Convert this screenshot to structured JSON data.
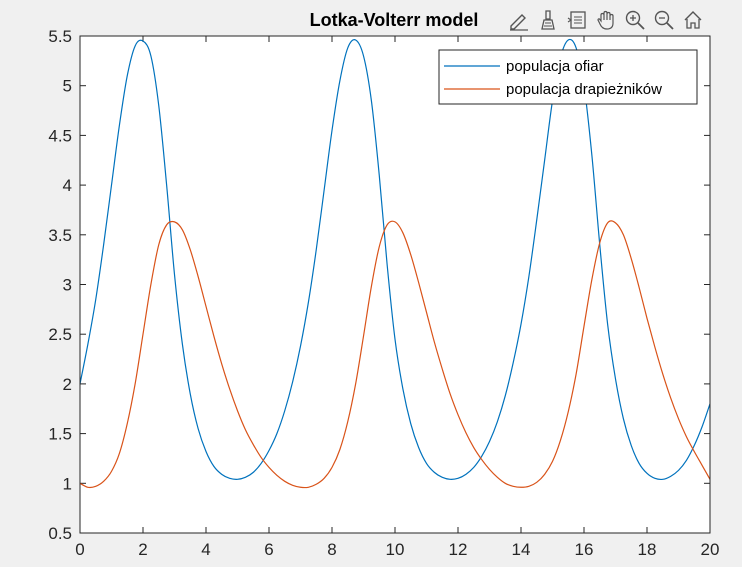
{
  "chart_data": {
    "type": "line",
    "title": "Lotka-Volterr model",
    "xlabel": "",
    "ylabel": "",
    "xlim": [
      0,
      20
    ],
    "ylim": [
      0.5,
      5.5
    ],
    "xticks": [
      "0",
      "2",
      "4",
      "6",
      "8",
      "10",
      "12",
      "14",
      "16",
      "18",
      "20"
    ],
    "yticks": [
      "0.5",
      "1",
      "1.5",
      "2",
      "2.5",
      "3",
      "3.5",
      "4",
      "4.5",
      "5",
      "5.5"
    ],
    "grid": false,
    "legend_position": "top-right",
    "series": [
      {
        "name": "populacja ofiar",
        "color": "#0072bd",
        "x": [
          0,
          0.25,
          0.5,
          0.75,
          1.0,
          1.25,
          1.5,
          1.75,
          2.0,
          2.25,
          2.5,
          2.75,
          3.0,
          3.25,
          3.5,
          3.75,
          4.0,
          4.25,
          4.5,
          4.75,
          5.0,
          5.25,
          5.5,
          5.75,
          6.0,
          6.25,
          6.5,
          6.75,
          7.0,
          7.25,
          7.5,
          7.75,
          8.0,
          8.25,
          8.5,
          8.75,
          9.0,
          9.25,
          9.5,
          9.75,
          10.0,
          10.25,
          10.5,
          10.75,
          11.0,
          11.25,
          11.5,
          11.75,
          12.0,
          12.25,
          12.5,
          12.75,
          13.0,
          13.25,
          13.5,
          13.75,
          14.0,
          14.25,
          14.5,
          14.75,
          15.0,
          15.25,
          15.5,
          15.75,
          16.0,
          16.25,
          16.5,
          16.75,
          17.0,
          17.25,
          17.5,
          17.75,
          18.0,
          18.25,
          18.5,
          18.75,
          19.0,
          19.25,
          19.5,
          19.75,
          20.0
        ],
        "y": [
          2.0,
          2.4,
          2.85,
          3.4,
          4.0,
          4.6,
          5.1,
          5.4,
          5.45,
          5.3,
          4.8,
          4.0,
          3.1,
          2.4,
          1.9,
          1.55,
          1.32,
          1.17,
          1.09,
          1.05,
          1.04,
          1.06,
          1.11,
          1.2,
          1.33,
          1.5,
          1.73,
          2.02,
          2.38,
          2.82,
          3.35,
          3.95,
          4.55,
          5.05,
          5.38,
          5.46,
          5.3,
          4.85,
          4.1,
          3.2,
          2.45,
          1.95,
          1.6,
          1.36,
          1.2,
          1.11,
          1.06,
          1.04,
          1.05,
          1.09,
          1.16,
          1.27,
          1.42,
          1.62,
          1.88,
          2.21,
          2.6,
          3.08,
          3.65,
          4.25,
          4.85,
          5.28,
          5.46,
          5.38,
          5.0,
          4.3,
          3.4,
          2.6,
          2.05,
          1.65,
          1.38,
          1.2,
          1.1,
          1.05,
          1.04,
          1.07,
          1.13,
          1.23,
          1.38,
          1.57,
          1.8
        ]
      },
      {
        "name": "populacja drapieżników",
        "color": "#d95319",
        "x": [
          0,
          0.25,
          0.5,
          0.75,
          1.0,
          1.25,
          1.5,
          1.75,
          2.0,
          2.25,
          2.5,
          2.75,
          3.0,
          3.25,
          3.5,
          3.75,
          4.0,
          4.25,
          4.5,
          4.75,
          5.0,
          5.25,
          5.5,
          5.75,
          6.0,
          6.25,
          6.5,
          6.75,
          7.0,
          7.25,
          7.5,
          7.75,
          8.0,
          8.25,
          8.5,
          8.75,
          9.0,
          9.25,
          9.5,
          9.75,
          10.0,
          10.25,
          10.5,
          10.75,
          11.0,
          11.25,
          11.5,
          11.75,
          12.0,
          12.25,
          12.5,
          12.75,
          13.0,
          13.25,
          13.5,
          13.75,
          14.0,
          14.25,
          14.5,
          14.75,
          15.0,
          15.25,
          15.5,
          15.75,
          16.0,
          16.25,
          16.5,
          16.75,
          17.0,
          17.25,
          17.5,
          17.75,
          18.0,
          18.25,
          18.5,
          18.75,
          19.0,
          19.25,
          19.5,
          19.75,
          20.0
        ],
        "y": [
          1.0,
          0.96,
          0.97,
          1.02,
          1.12,
          1.3,
          1.6,
          2.0,
          2.5,
          3.0,
          3.4,
          3.6,
          3.63,
          3.55,
          3.35,
          3.08,
          2.78,
          2.48,
          2.2,
          1.95,
          1.73,
          1.54,
          1.39,
          1.26,
          1.16,
          1.08,
          1.02,
          0.98,
          0.96,
          0.96,
          0.99,
          1.05,
          1.16,
          1.34,
          1.62,
          2.0,
          2.48,
          2.98,
          3.38,
          3.6,
          3.63,
          3.52,
          3.3,
          3.02,
          2.72,
          2.42,
          2.15,
          1.9,
          1.69,
          1.51,
          1.36,
          1.24,
          1.14,
          1.06,
          1.0,
          0.97,
          0.96,
          0.97,
          1.01,
          1.09,
          1.22,
          1.43,
          1.72,
          2.1,
          2.58,
          3.05,
          3.42,
          3.62,
          3.62,
          3.5,
          3.26,
          2.97,
          2.66,
          2.37,
          2.1,
          1.86,
          1.65,
          1.47,
          1.32,
          1.18,
          1.04
        ]
      }
    ]
  },
  "toolbar": {
    "icons": [
      "edit-plot-icon",
      "data-brush-icon",
      "data-tips-icon",
      "pan-icon",
      "zoom-in-icon",
      "zoom-out-icon",
      "home-icon"
    ]
  }
}
